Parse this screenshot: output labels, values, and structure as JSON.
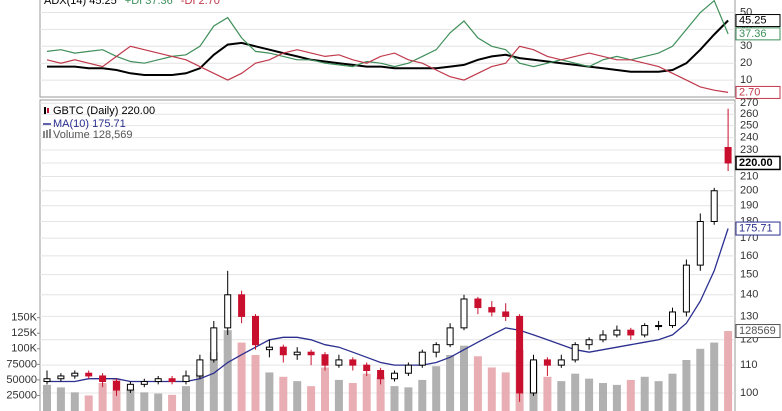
{
  "chart_data": [
    {
      "type": "line",
      "ylim": [
        0,
        58
      ],
      "yticks": [
        10,
        20,
        30,
        40,
        50
      ],
      "grid": true,
      "series": [
        {
          "name": "ADX(14) 45.25",
          "color": "#000000",
          "last_label": "45.25",
          "values": [
            18,
            18,
            18,
            17,
            17,
            16,
            14,
            13,
            13,
            13,
            14,
            17,
            25,
            31,
            32,
            30,
            28,
            26,
            24,
            22,
            21,
            20,
            19,
            18,
            18,
            17,
            17,
            17,
            17,
            18,
            19,
            22,
            24,
            25,
            23,
            22,
            21,
            20,
            19,
            18,
            17,
            16,
            15,
            15,
            15,
            16,
            20,
            28,
            37,
            45.25
          ]
        },
        {
          "name": "+DI 37.36",
          "color": "#3f8f5a",
          "last_label": "37.36",
          "values": [
            27,
            28,
            26,
            27,
            28,
            24,
            21,
            20,
            22,
            24,
            25,
            30,
            42,
            47,
            35,
            27,
            26,
            24,
            22,
            22,
            20,
            19,
            18,
            21,
            20,
            18,
            20,
            24,
            28,
            38,
            45,
            35,
            30,
            28,
            20,
            18,
            20,
            22,
            20,
            18,
            22,
            24,
            22,
            24,
            26,
            30,
            40,
            50,
            57,
            37.36
          ]
        },
        {
          "name": "-DI 2.70",
          "color": "#c0394b",
          "last_label": "2.70",
          "values": [
            22,
            20,
            22,
            20,
            18,
            24,
            30,
            28,
            26,
            24,
            22,
            18,
            14,
            10,
            14,
            20,
            22,
            26,
            28,
            26,
            24,
            25,
            22,
            20,
            24,
            26,
            22,
            20,
            16,
            12,
            10,
            14,
            18,
            20,
            30,
            28,
            24,
            22,
            24,
            26,
            24,
            22,
            22,
            20,
            18,
            14,
            10,
            6,
            4,
            2.7
          ]
        }
      ]
    },
    {
      "type": "candlestick",
      "log_scale": true,
      "grid": true,
      "ylim": [
        94,
        273
      ],
      "yticks": [
        100,
        110,
        120,
        130,
        140,
        150,
        160,
        170,
        180,
        190,
        200,
        210,
        220,
        230,
        240,
        250,
        260,
        270
      ],
      "y2lim": [
        0,
        500000
      ],
      "y2ticks": [
        25000,
        50000,
        75000,
        {
          "value": 100000,
          "label": "100K"
        },
        {
          "value": 125000,
          "label": "125K"
        },
        {
          "value": 150000,
          "label": "150K"
        }
      ],
      "series": [
        {
          "name": "GBTC (Daily) 220.00",
          "up_color": "#ffffff",
          "down_color": "#c8102e",
          "last_label": "220.00",
          "open": [
            104,
            105,
            106,
            107,
            106,
            104,
            101,
            103,
            104,
            105,
            104,
            106,
            112,
            125,
            140,
            130,
            116,
            117,
            114,
            115,
            114,
            110,
            112,
            110,
            108,
            105,
            107,
            110,
            115,
            118,
            125,
            138,
            134,
            132,
            130,
            100,
            112,
            110,
            112,
            118,
            120,
            122,
            124,
            122,
            126,
            126,
            132,
            155,
            180,
            232
          ],
          "high": [
            108,
            107,
            108,
            108,
            107,
            105,
            104,
            105,
            106,
            106,
            108,
            114,
            128,
            152,
            142,
            131,
            120,
            118,
            117,
            116,
            115,
            114,
            113,
            111,
            109,
            108,
            111,
            116,
            119,
            127,
            140,
            139,
            137,
            136,
            131,
            114,
            113,
            114,
            119,
            121,
            124,
            126,
            125,
            127,
            128,
            134,
            158,
            185,
            202,
            265
          ],
          "low": [
            103,
            104,
            105,
            105,
            102,
            99,
            100,
            102,
            103,
            103,
            103,
            105,
            111,
            122,
            127,
            116,
            113,
            111,
            112,
            110,
            108,
            109,
            108,
            106,
            103,
            104,
            106,
            109,
            113,
            117,
            124,
            131,
            130,
            128,
            97,
            99,
            106,
            109,
            111,
            116,
            119,
            121,
            120,
            121,
            124,
            125,
            130,
            152,
            178,
            214
          ],
          "close": [
            105,
            106,
            107,
            106,
            104,
            101,
            103,
            104,
            105,
            104,
            106,
            112,
            125,
            140,
            130,
            118,
            117,
            114,
            115,
            114,
            110,
            112,
            110,
            108,
            105,
            107,
            110,
            115,
            118,
            125,
            138,
            134,
            132,
            130,
            100,
            112,
            110,
            112,
            118,
            120,
            122,
            124,
            122,
            126,
            126,
            132,
            155,
            180,
            200,
            220
          ]
        },
        {
          "name": "MA(10) 175.71",
          "color": "#2b2f8f",
          "last_label": "175.71",
          "values": [
            104,
            104,
            104,
            105,
            105,
            105,
            104,
            104,
            104,
            104,
            104,
            105,
            107,
            111,
            114,
            117,
            120,
            121,
            121,
            120,
            118,
            117,
            115,
            113,
            111,
            110,
            110,
            110,
            111,
            113,
            116,
            119,
            122,
            125,
            124,
            122,
            120,
            118,
            116,
            115,
            116,
            117,
            118,
            119,
            120,
            122,
            127,
            137,
            152,
            175.71
          ]
        },
        {
          "name": "Volume 128,569",
          "axis": "y2",
          "up_color": "#a9a9a9",
          "down_color": "#e7a5ab",
          "last_label": "128569",
          "values": [
            42000,
            38000,
            30000,
            25000,
            45000,
            52000,
            35000,
            30000,
            28000,
            26000,
            40000,
            60000,
            95000,
            130000,
            110000,
            90000,
            62000,
            55000,
            48000,
            40000,
            70000,
            50000,
            45000,
            60000,
            55000,
            40000,
            38000,
            50000,
            72000,
            90000,
            105000,
            88000,
            70000,
            62000,
            98000,
            80000,
            55000,
            48000,
            60000,
            52000,
            45000,
            42000,
            50000,
            55000,
            48000,
            60000,
            82000,
            100000,
            110000,
            128569
          ]
        }
      ]
    }
  ]
}
